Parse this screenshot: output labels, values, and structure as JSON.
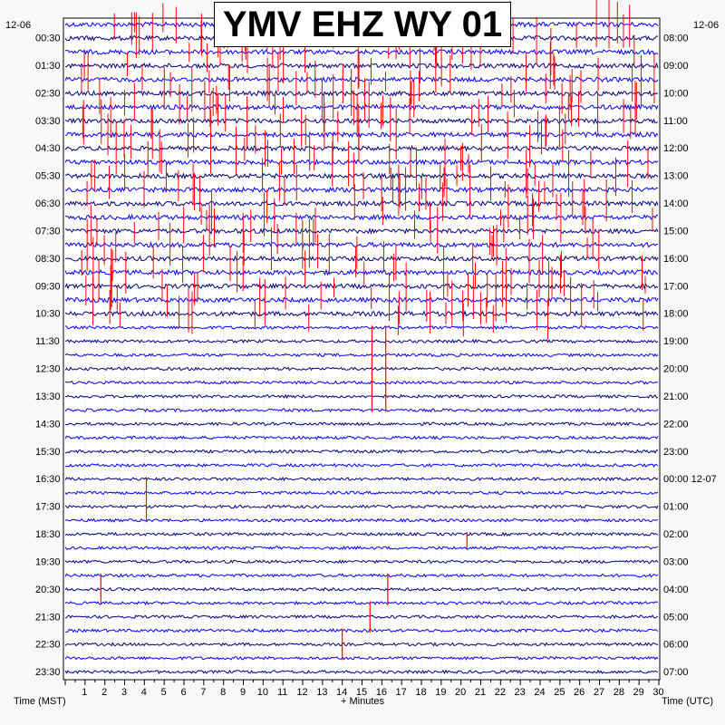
{
  "chart_data": {
    "type": "line",
    "title": "YMV EHZ WY 01",
    "date_left": "12-06",
    "date_right": "12-06",
    "xlabel": "+ Minutes",
    "xlabel_left": "Time (MST)",
    "xlabel_right": "Time (UTC)",
    "x_ticks": [
      "1",
      "2",
      "3",
      "4",
      "5",
      "6",
      "7",
      "8",
      "9",
      "10",
      "11",
      "12",
      "13",
      "14",
      "15",
      "16",
      "17",
      "18",
      "19",
      "20",
      "21",
      "22",
      "23",
      "24",
      "25",
      "26",
      "27",
      "28",
      "29",
      "30"
    ],
    "xlim": [
      0,
      30
    ],
    "left_time_labels": [
      "00:30",
      "01:30",
      "02:30",
      "03:30",
      "04:30",
      "05:30",
      "06:30",
      "07:30",
      "08:30",
      "09:30",
      "10:30",
      "11:30",
      "12:30",
      "13:30",
      "14:30",
      "15:30",
      "16:30",
      "17:30",
      "18:30",
      "19:30",
      "20:30",
      "21:30",
      "22:30",
      "23:30"
    ],
    "right_time_labels": [
      "08:00",
      "09:00",
      "10:00",
      "11:00",
      "12:00",
      "13:00",
      "14:00",
      "15:00",
      "16:00",
      "17:00",
      "18:00",
      "19:00",
      "20:00",
      "21:00",
      "22:00",
      "23:00",
      "00:00 12-07",
      "01:00",
      "02:00",
      "03:00",
      "04:00",
      "05:00",
      "06:00",
      "07:00"
    ],
    "traces_per_hour": 2,
    "trace_count": 48,
    "trace_colors": [
      "#0000ff",
      "#000080"
    ],
    "clip_color": "#ff0000",
    "grid": true,
    "events": [
      {
        "start_trace": 0,
        "end_trace": 22,
        "minute": 0.9,
        "note": "dense clipped activity"
      },
      {
        "start_trace": 22,
        "end_trace": 28,
        "minute": 15.5
      },
      {
        "start_trace": 22,
        "end_trace": 28,
        "minute": 16.2
      },
      {
        "start_trace": 33,
        "end_trace": 36,
        "minute": 4.1
      },
      {
        "start_trace": 37,
        "end_trace": 38,
        "minute": 20.3
      },
      {
        "start_trace": 40,
        "end_trace": 42,
        "minute": 1.8
      },
      {
        "start_trace": 40,
        "end_trace": 42,
        "minute": 16.3
      },
      {
        "start_trace": 42,
        "end_trace": 44,
        "minute": 15.4
      },
      {
        "start_trace": 44,
        "end_trace": 46,
        "minute": 14.0
      }
    ]
  }
}
